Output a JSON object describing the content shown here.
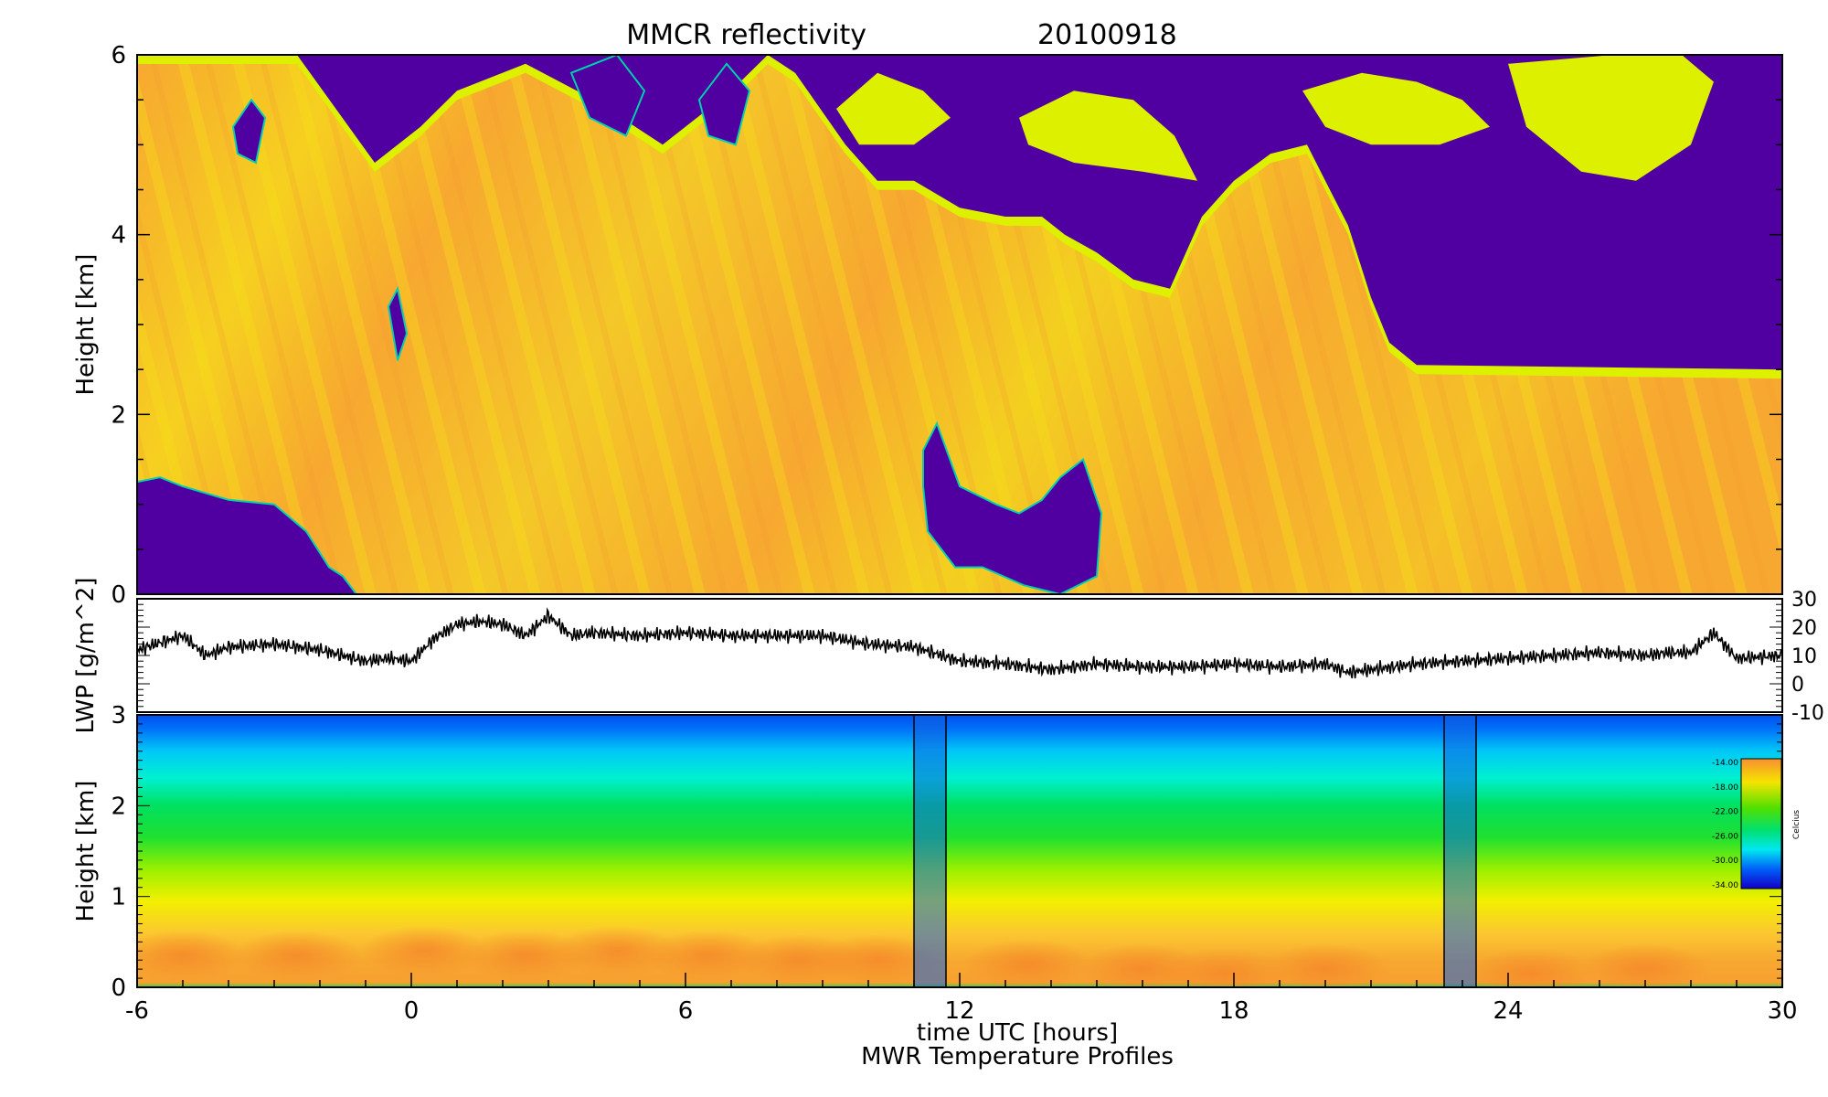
{
  "figure": {
    "title_left": "MMCR reflectivity",
    "title_right": "20100918",
    "xlabel": "time UTC [hours]",
    "footer": "MWR Temperature Profiles"
  },
  "chart_data": [
    {
      "type": "heatmap",
      "title": "MMCR reflectivity   20100918",
      "ylabel": "Height [km]",
      "ylim": [
        0,
        6
      ],
      "yticks": [
        "0",
        "2",
        "4",
        "6"
      ],
      "xlim": [
        -6,
        30
      ],
      "background_color": "#5000a0",
      "colors": {
        "clear": "#5000a0",
        "cloud_weak": "#dcf000",
        "cloud_mid": "#f4e000",
        "cloud_strong": "#f7a830"
      },
      "top_boundary_km": [
        [
          -6,
          6.0
        ],
        [
          -2.5,
          6.0
        ],
        [
          -0.8,
          4.8
        ],
        [
          0.2,
          5.2
        ],
        [
          1,
          5.6
        ],
        [
          2.5,
          5.9
        ],
        [
          4,
          5.5
        ],
        [
          5.5,
          5.0
        ],
        [
          7,
          5.6
        ],
        [
          7.8,
          6.0
        ],
        [
          8.4,
          5.8
        ],
        [
          9.5,
          5.0
        ],
        [
          10.2,
          4.6
        ],
        [
          11,
          4.6
        ],
        [
          12,
          4.3
        ],
        [
          13,
          4.2
        ],
        [
          13.8,
          4.2
        ],
        [
          14.3,
          4.0
        ],
        [
          15,
          3.8
        ],
        [
          15.8,
          3.5
        ],
        [
          16.6,
          3.4
        ],
        [
          17.3,
          4.2
        ],
        [
          18,
          4.6
        ],
        [
          18.8,
          4.9
        ],
        [
          19.6,
          5.0
        ],
        [
          20,
          4.6
        ],
        [
          20.5,
          4.1
        ],
        [
          21,
          3.3
        ],
        [
          21.4,
          2.8
        ],
        [
          22,
          2.55
        ],
        [
          30,
          2.5
        ]
      ],
      "low_boundary_km": [
        [
          -6,
          1.25
        ],
        [
          -5.5,
          1.3
        ],
        [
          -5,
          1.2
        ],
        [
          -4,
          1.05
        ],
        [
          -3,
          1.0
        ],
        [
          -2.3,
          0.7
        ],
        [
          -1.8,
          0.3
        ],
        [
          -1.5,
          0.2
        ],
        [
          -1.2,
          0.0
        ]
      ],
      "clear_pockets": [
        {
          "t": [
            11.2,
            11.5,
            12,
            12.8,
            13.3,
            13.8,
            14.2,
            14.7,
            15.1,
            15.0,
            14.2,
            13.4,
            12.5,
            11.9,
            11.3,
            11.2
          ],
          "h": [
            1.6,
            1.9,
            1.2,
            1.0,
            0.9,
            1.05,
            1.3,
            1.5,
            0.9,
            0.2,
            0.0,
            0.1,
            0.3,
            0.3,
            0.7,
            1.2
          ]
        },
        {
          "t": [
            -3.9,
            -3.5,
            -3.2,
            -3.4,
            -3.8
          ],
          "h": [
            5.2,
            5.5,
            5.3,
            4.8,
            4.9
          ]
        },
        {
          "t": [
            3.5,
            4.5,
            5.1,
            4.7,
            3.9
          ],
          "h": [
            5.8,
            6.0,
            5.6,
            5.1,
            5.3
          ]
        },
        {
          "t": [
            6.3,
            6.9,
            7.4,
            7.1,
            6.5
          ],
          "h": [
            5.5,
            5.9,
            5.6,
            5.0,
            5.1
          ]
        },
        {
          "t": [
            -0.5,
            -0.3,
            -0.1,
            -0.3
          ],
          "h": [
            3.2,
            3.4,
            2.9,
            2.6
          ]
        }
      ],
      "cloud_patches": [
        {
          "t": [
            9.3,
            10.2,
            11.2,
            11.8,
            11.0,
            9.8
          ],
          "h": [
            5.4,
            5.8,
            5.6,
            5.3,
            5.0,
            5.0
          ]
        },
        {
          "t": [
            13.3,
            14.5,
            15.8,
            16.7,
            17.2,
            16.0,
            14.5,
            13.5
          ],
          "h": [
            5.3,
            5.6,
            5.5,
            5.1,
            4.6,
            4.7,
            4.8,
            5.0
          ]
        },
        {
          "t": [
            19.5,
            20.8,
            22.0,
            23.0,
            23.6,
            22.5,
            21.0,
            20.0
          ],
          "h": [
            5.6,
            5.8,
            5.7,
            5.5,
            5.2,
            5.0,
            5.0,
            5.2
          ]
        },
        {
          "t": [
            24.0,
            26.3,
            27.8,
            28.5,
            28.0,
            26.8,
            25.6,
            24.4
          ],
          "h": [
            5.9,
            6.0,
            6.0,
            5.7,
            5.0,
            4.6,
            4.7,
            5.2
          ]
        }
      ]
    },
    {
      "type": "line",
      "ylabel": "LWP [g/m^2]",
      "ylim": [
        -10,
        30
      ],
      "yticks": [
        "30",
        "20",
        "10",
        "0",
        "-10"
      ],
      "xlim": [
        -6,
        30
      ],
      "series": [
        {
          "x": [
            -6,
            -5,
            -4.5,
            -4,
            -3,
            -2,
            -1,
            -0.5,
            0,
            0.5,
            1,
            1.5,
            2,
            2.5,
            3,
            3.5,
            4,
            5,
            6,
            7,
            8,
            9,
            10,
            11,
            12,
            13,
            14,
            15,
            16,
            17,
            18,
            19,
            20,
            20.5,
            21,
            22,
            23,
            24,
            25,
            26,
            27,
            27.5,
            28,
            28.5,
            29,
            30
          ],
          "y": [
            12,
            17,
            10,
            13,
            14,
            12,
            8,
            9,
            8,
            16,
            21,
            22,
            21,
            17,
            24,
            17,
            18,
            17,
            18,
            17,
            17,
            17,
            14,
            13,
            8,
            7,
            5,
            7,
            6,
            6,
            7,
            6,
            7,
            4,
            5,
            7,
            8,
            9,
            10,
            11,
            10,
            11,
            11,
            18,
            9,
            10
          ],
          "color": "#000000"
        }
      ]
    },
    {
      "type": "heatmap",
      "ylabel": "Height [km]",
      "ylim": [
        0,
        3
      ],
      "yticks": [
        "0",
        "1",
        "2",
        "3"
      ],
      "xlim": [
        -6,
        30
      ],
      "xticks": [
        "-6",
        "0",
        "6",
        "12",
        "18",
        "24",
        "30"
      ],
      "value_unit": "Celcius",
      "color_range": [
        -34,
        -14
      ],
      "colorbar_labels": [
        "-14.00",
        "-18.00",
        "-22.00",
        "-26.00",
        "-30.00",
        "-34.00"
      ],
      "vertical_profile": [
        {
          "h": 0.0,
          "color": "#40d040"
        },
        {
          "h": 0.05,
          "color": "#f7a030"
        },
        {
          "h": 0.3,
          "color": "#f7a830"
        },
        {
          "h": 0.6,
          "color": "#fbc830"
        },
        {
          "h": 0.95,
          "color": "#f2f000"
        },
        {
          "h": 1.3,
          "color": "#9af000"
        },
        {
          "h": 1.65,
          "color": "#20e030"
        },
        {
          "h": 2.0,
          "color": "#00e060"
        },
        {
          "h": 2.3,
          "color": "#00f0d0"
        },
        {
          "h": 2.6,
          "color": "#00c8f8"
        },
        {
          "h": 2.85,
          "color": "#0070f8"
        },
        {
          "h": 3.0,
          "color": "#0050f0"
        }
      ],
      "gap_intervals": [
        [
          11.0,
          11.7
        ],
        [
          22.6,
          23.3
        ]
      ],
      "gap_color": "#1060e0",
      "warm_cells": [
        [
          -5,
          0.35
        ],
        [
          -2.5,
          0.35
        ],
        [
          0.3,
          0.4
        ],
        [
          2.5,
          0.35
        ],
        [
          4.5,
          0.4
        ],
        [
          6.5,
          0.35
        ],
        [
          8.5,
          0.3
        ],
        [
          10.2,
          0.3
        ],
        [
          13.5,
          0.25
        ],
        [
          16,
          0.2
        ],
        [
          17.8,
          0.15
        ],
        [
          20,
          0.2
        ],
        [
          24.5,
          0.15
        ],
        [
          27,
          0.2
        ]
      ]
    }
  ]
}
